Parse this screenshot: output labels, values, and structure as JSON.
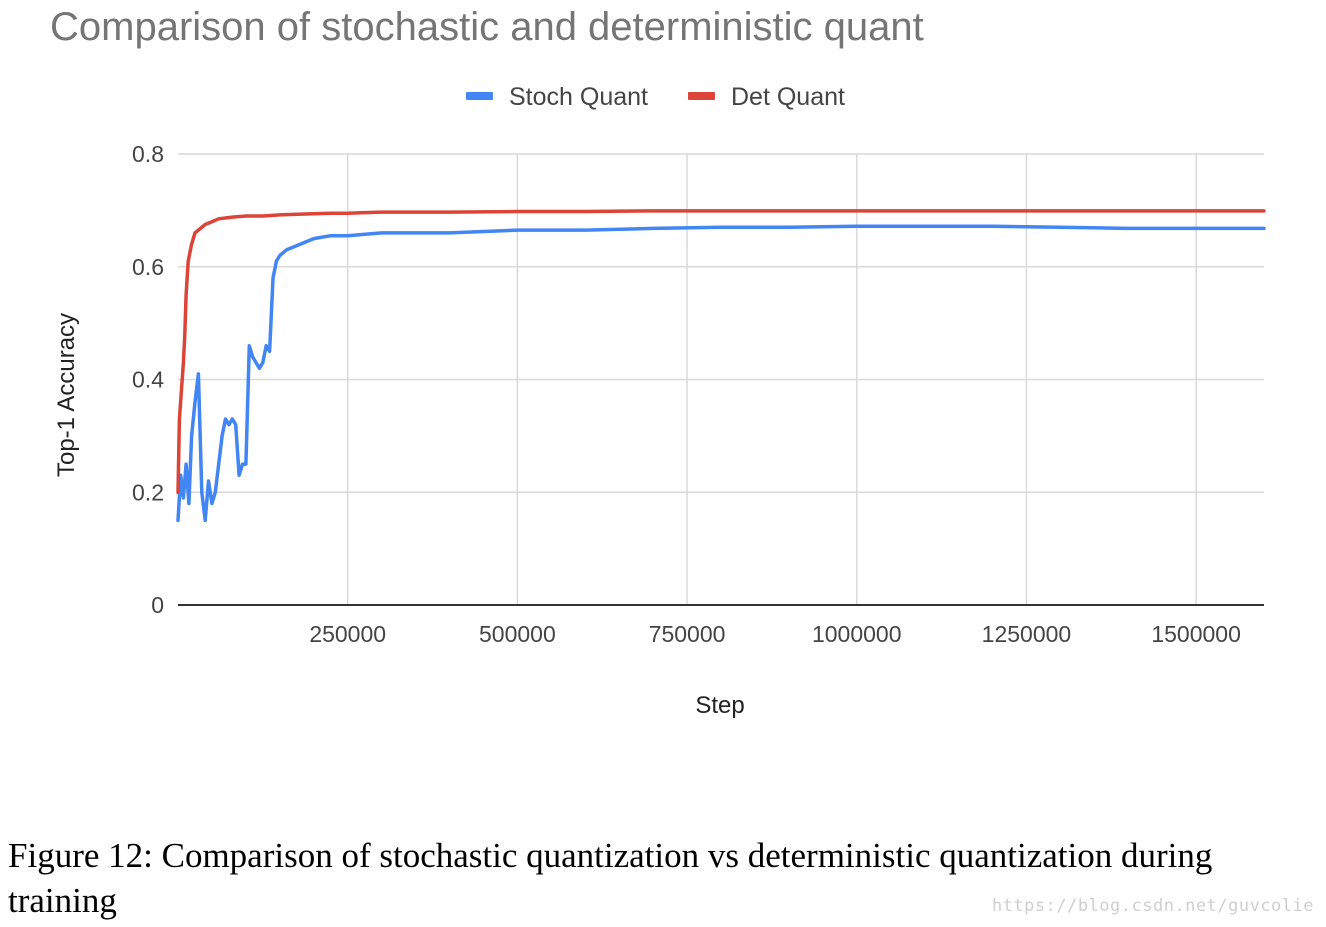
{
  "chart_data": {
    "type": "line",
    "title": "Comparison of stochastic and deterministic quant",
    "xlabel": "Step",
    "ylabel": "Top-1 Accuracy",
    "xlim": [
      0,
      1600000
    ],
    "ylim": [
      0,
      0.8
    ],
    "xticks": [
      250000,
      500000,
      750000,
      1000000,
      1250000,
      1500000
    ],
    "yticks": [
      0,
      0.2,
      0.4,
      0.6,
      0.8
    ],
    "xtick_labels": [
      "250000",
      "500000",
      "750000",
      "1000000",
      "1250000",
      "1500000"
    ],
    "ytick_labels": [
      "0",
      "0.2",
      "0.4",
      "0.6",
      "0.8"
    ],
    "grid": true,
    "legend_position": "top",
    "series": [
      {
        "name": "Stoch Quant",
        "color": "#4285f4",
        "x": [
          0,
          4000,
          8000,
          12000,
          16000,
          20000,
          25000,
          30000,
          35000,
          40000,
          45000,
          50000,
          55000,
          60000,
          65000,
          70000,
          75000,
          80000,
          85000,
          90000,
          95000,
          100000,
          105000,
          110000,
          115000,
          120000,
          125000,
          130000,
          135000,
          140000,
          145000,
          150000,
          160000,
          170000,
          180000,
          190000,
          200000,
          225000,
          250000,
          300000,
          400000,
          500000,
          600000,
          700000,
          800000,
          900000,
          1000000,
          1100000,
          1200000,
          1300000,
          1400000,
          1500000,
          1600000
        ],
        "y": [
          0.15,
          0.23,
          0.19,
          0.25,
          0.18,
          0.3,
          0.36,
          0.41,
          0.2,
          0.15,
          0.22,
          0.18,
          0.2,
          0.25,
          0.3,
          0.33,
          0.32,
          0.33,
          0.32,
          0.23,
          0.25,
          0.25,
          0.46,
          0.44,
          0.43,
          0.42,
          0.43,
          0.46,
          0.45,
          0.58,
          0.61,
          0.62,
          0.63,
          0.635,
          0.64,
          0.645,
          0.65,
          0.655,
          0.655,
          0.66,
          0.66,
          0.665,
          0.665,
          0.668,
          0.67,
          0.67,
          0.672,
          0.672,
          0.672,
          0.67,
          0.668,
          0.668,
          0.668
        ]
      },
      {
        "name": "Det Quant",
        "color": "#db4437",
        "x": [
          0,
          2000,
          5000,
          8000,
          10000,
          12000,
          15000,
          20000,
          25000,
          30000,
          40000,
          50000,
          60000,
          80000,
          100000,
          125000,
          150000,
          175000,
          200000,
          225000,
          250000,
          275000,
          300000,
          400000,
          500000,
          600000,
          700000,
          800000,
          900000,
          1000000,
          1100000,
          1200000,
          1300000,
          1400000,
          1500000,
          1600000
        ],
        "y": [
          0.2,
          0.33,
          0.38,
          0.43,
          0.48,
          0.55,
          0.61,
          0.64,
          0.66,
          0.665,
          0.675,
          0.68,
          0.685,
          0.688,
          0.69,
          0.69,
          0.692,
          0.693,
          0.694,
          0.695,
          0.695,
          0.696,
          0.697,
          0.697,
          0.698,
          0.698,
          0.699,
          0.699,
          0.699,
          0.699,
          0.699,
          0.699,
          0.699,
          0.699,
          0.699,
          0.699
        ]
      }
    ]
  },
  "caption": "Figure 12: Comparison of stochastic quantization vs deterministic quantization during training",
  "watermark": "https://blog.csdn.net/guvcolie"
}
